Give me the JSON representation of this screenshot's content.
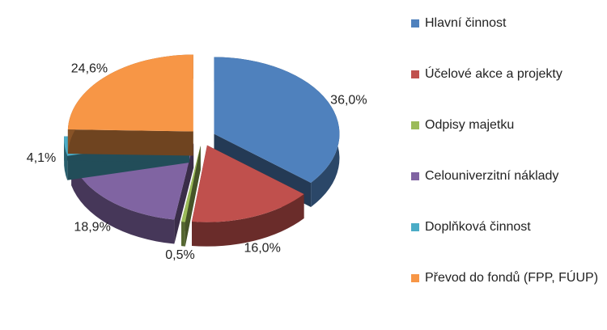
{
  "chart_data": {
    "type": "pie",
    "categories": [
      "Hlavní činnost",
      "Účelové akce a projekty",
      "Odpisy majetku",
      "Celouniverzitní náklady",
      "Doplňková činnost",
      "Převod do fondů (FPP, FÚUP)"
    ],
    "values": [
      36.0,
      16.0,
      0.5,
      18.9,
      4.1,
      24.6
    ],
    "value_labels": [
      "36,0%",
      "16,0%",
      "0,5%",
      "18,9%",
      "4,1%",
      "24,6%"
    ],
    "colors": [
      "#4f81bd",
      "#c0504d",
      "#9bbb59",
      "#8064a2",
      "#4bacc6",
      "#f79646"
    ],
    "legend": "right"
  }
}
